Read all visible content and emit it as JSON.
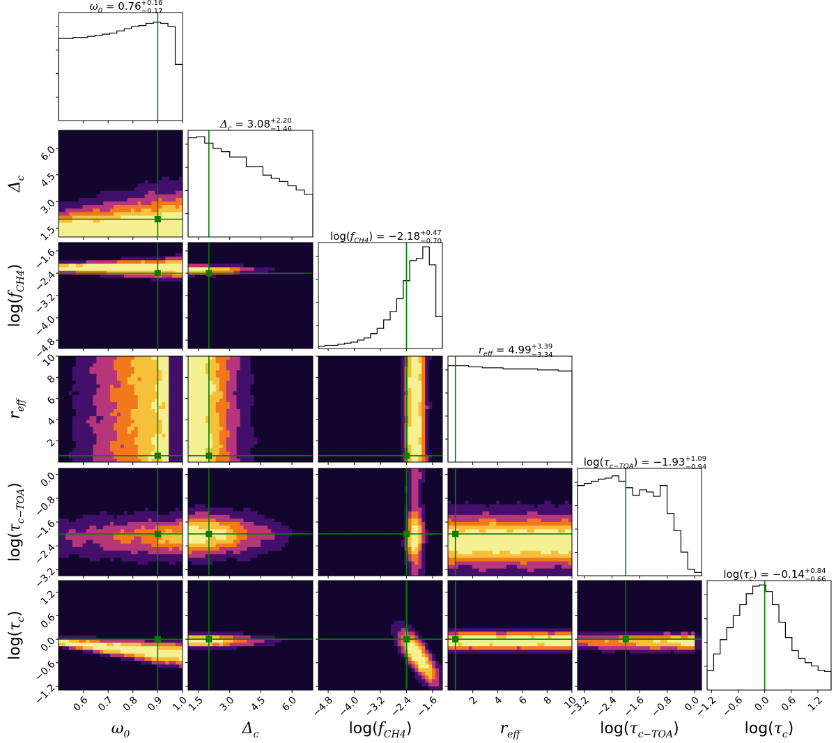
{
  "chart_data": {
    "type": "corner",
    "truth_color": "#008000",
    "contour_colormap": [
      "#13062e",
      "#420f6b",
      "#b5367a",
      "#f2781d",
      "#f6c13a",
      "#f5f193"
    ],
    "params": [
      {
        "key": "w0",
        "sym": "ω",
        "sub": "0",
        "logwrap": false,
        "range": [
          0.5,
          1.0
        ],
        "ticks": [
          "0.6",
          "0.7",
          "0.8",
          "0.9",
          "1.0"
        ],
        "tickvals": [
          0.6,
          0.7,
          0.8,
          0.9,
          1.0
        ],
        "truth": 0.9,
        "title": {
          "lhs": "ω",
          "lhs_sub": "0",
          "eq": " = 0.76",
          "plus": "+0.16",
          "minus": "−0.17"
        },
        "hist": [
          0.76,
          0.76,
          0.77,
          0.77,
          0.78,
          0.79,
          0.8,
          0.81,
          0.83,
          0.85,
          0.87,
          0.88,
          0.9,
          0.91,
          0.9,
          0.87,
          0.52
        ]
      },
      {
        "key": "dc",
        "sym": "Δ",
        "sub": "c",
        "logwrap": false,
        "range": [
          1.0,
          7.0
        ],
        "ticks": [
          "1.5",
          "3.0",
          "4.5",
          "6.0"
        ],
        "tickvals": [
          1.5,
          3.0,
          4.5,
          6.0
        ],
        "truth": 2.0,
        "title": {
          "lhs": "Δ",
          "lhs_sub": "c",
          "eq": " = 3.08",
          "plus": "+2.20",
          "minus": "−1.46"
        },
        "hist": [
          0.93,
          0.94,
          0.88,
          0.83,
          0.8,
          0.75,
          0.75,
          0.66,
          0.66,
          0.58,
          0.55,
          0.52,
          0.48,
          0.44,
          0.4
        ]
      },
      {
        "key": "fch4",
        "sym": "f",
        "sub": "CH4",
        "logwrap": true,
        "range": [
          -5.1,
          -1.3
        ],
        "ticks": [
          "−4.8",
          "−4.0",
          "−3.2",
          "−2.4",
          "−1.6"
        ],
        "tickvals": [
          -4.8,
          -4.0,
          -3.2,
          -2.4,
          -1.6
        ],
        "truth": -2.4,
        "title": {
          "lhs": "f",
          "lhs_sub": "CH4",
          "eq": ") = −2.18",
          "plus": "+0.47",
          "minus": "−0.70"
        },
        "hist": [
          0.02,
          0.03,
          0.03,
          0.04,
          0.05,
          0.06,
          0.08,
          0.1,
          0.14,
          0.19,
          0.27,
          0.35,
          0.47,
          0.64,
          0.83,
          0.85,
          0.96,
          0.79,
          0.3
        ]
      },
      {
        "key": "reff",
        "sym": "r",
        "sub": "eff",
        "logwrap": false,
        "range": [
          0.0,
          10.0
        ],
        "ticks": [
          "2",
          "4",
          "6",
          "8",
          "10"
        ],
        "tickvals": [
          2,
          4,
          6,
          8,
          10
        ],
        "truth": 0.6,
        "title": {
          "lhs": "r",
          "lhs_sub": "eff",
          "eq": " = 4.99",
          "plus": "+3.39",
          "minus": "−3.34"
        },
        "hist": [
          0.91,
          0.91,
          0.91,
          0.9,
          0.9,
          0.89,
          0.89,
          0.89,
          0.88,
          0.88,
          0.88,
          0.88,
          0.88,
          0.87,
          0.87,
          0.87,
          0.86,
          0.86
        ]
      },
      {
        "key": "tctoa",
        "sym": "τ",
        "sub": "c−TOA",
        "logwrap": true,
        "range": [
          -3.4,
          0.2
        ],
        "ticks": [
          "−3.2",
          "−2.4",
          "−1.6",
          "−0.8",
          "0.0"
        ],
        "tickvals": [
          -3.2,
          -2.4,
          -1.6,
          -0.8,
          0.0
        ],
        "truth": -2.0,
        "title": {
          "lhs": "τ",
          "lhs_sub": "c−TOA",
          "eq": ") = −1.93",
          "plus": "+1.09",
          "minus": "−0.94"
        },
        "hist": [
          0.84,
          0.86,
          0.88,
          0.9,
          0.91,
          0.93,
          0.88,
          0.82,
          0.75,
          0.8,
          0.78,
          0.74,
          0.84,
          0.58,
          0.42,
          0.22,
          0.06,
          0.03
        ]
      },
      {
        "key": "tc",
        "sym": "τ",
        "sub": "c",
        "logwrap": true,
        "range": [
          -1.3,
          1.5
        ],
        "ticks": [
          "−1.2",
          "−0.6",
          "0.0",
          "0.6",
          "1.2"
        ],
        "tickvals": [
          -1.2,
          -0.6,
          0.0,
          0.6,
          1.2
        ],
        "truth": 0.0,
        "title": {
          "lhs": "τ",
          "lhs_sub": "c",
          "eq": ") = −0.14",
          "plus": "+0.84",
          "minus": "−0.66"
        },
        "hist": [
          0.18,
          0.33,
          0.46,
          0.57,
          0.68,
          0.78,
          0.88,
          0.95,
          0.96,
          0.9,
          0.78,
          0.62,
          0.48,
          0.36,
          0.29,
          0.25,
          0.22,
          0.18,
          0.17
        ]
      }
    ]
  }
}
